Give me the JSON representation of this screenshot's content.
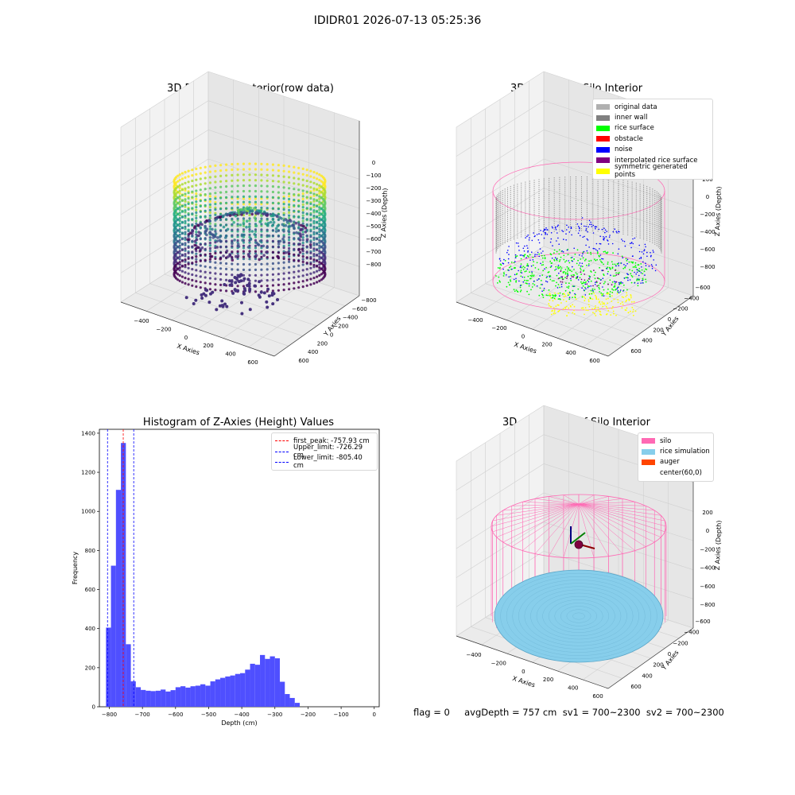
{
  "figure": {
    "suptitle": "IDIDR01 2026-07-13 05:25:36",
    "status_line": "flag = 0     avgDepth = 757 cm  sv1 = 700~2300  sv2 = 700~2300"
  },
  "colors": {
    "silo": "#ff69b4",
    "rice": "#87ceeb",
    "auger": "#ff4500",
    "inner_wall": "#808080",
    "rice_surface": "#00ff00",
    "obstacle": "#ff0000",
    "noise": "#0000ff",
    "interpolated": "#800080",
    "symmetric": "#ffff00",
    "original": "#b0b0b0",
    "hist_bar": "#4f4fff"
  },
  "chart_data": [
    {
      "type": "scatter3d",
      "title": "3D Plot of Silo Interior(row data)",
      "xlabel": "X Axies",
      "ylabel": "Y Axies",
      "zlabel": "Z Axies (Depth)",
      "xticks": [
        "−400",
        "−200",
        "0",
        "200",
        "400",
        "600"
      ],
      "yticks": [
        "−800",
        "−600",
        "−400",
        "−200",
        "0",
        "200",
        "400",
        "600"
      ],
      "zticks": [
        "0",
        "−100",
        "−200",
        "−300",
        "−400",
        "−500",
        "−600",
        "−700",
        "−800"
      ],
      "colormap": "viridis"
    },
    {
      "type": "scatter3d",
      "title": "3D classify of Silo Interior",
      "xlabel": "X Axies",
      "ylabel": "Y Axies",
      "zlabel": "Z Axies (Depth)",
      "xticks": [
        "−400",
        "−200",
        "0",
        "200",
        "400",
        "600"
      ],
      "yticks": [
        "−600",
        "−400",
        "−200",
        "0",
        "200",
        "400",
        "600"
      ],
      "zticks": [
        "200",
        "0",
        "−200",
        "−400",
        "−600",
        "−800"
      ],
      "legend": [
        {
          "label": "original data",
          "color": "#b0b0b0"
        },
        {
          "label": "inner wall",
          "color": "#808080"
        },
        {
          "label": "rice surface",
          "color": "#00ff00"
        },
        {
          "label": "obstacle",
          "color": "#ff0000"
        },
        {
          "label": "noise",
          "color": "#0000ff"
        },
        {
          "label": "interpolated rice surface",
          "color": "#800080"
        },
        {
          "label": "symmetric generated points",
          "color": "#ffff00"
        }
      ]
    },
    {
      "type": "bar",
      "title": "Histogram of Z-Axies (Height) Values",
      "xlabel": "Depth (cm)",
      "ylabel": "Frequency",
      "xlim": [
        -830,
        15
      ],
      "ylim": [
        0,
        1420
      ],
      "xticks": [
        -800,
        -700,
        -600,
        -500,
        -400,
        -300,
        -200,
        -100,
        0
      ],
      "xtick_labels": [
        "−800",
        "−700",
        "−600",
        "−500",
        "−400",
        "−300",
        "−200",
        "−100",
        "0"
      ],
      "yticks": [
        0,
        200,
        400,
        600,
        800,
        1000,
        1200,
        1400
      ],
      "yticks_labels": [
        "0",
        "200",
        "400",
        "600",
        "800",
        "1000",
        "1200",
        "1400"
      ],
      "bin_start": -810,
      "bin_width": 15,
      "values": [
        405,
        722,
        1110,
        1350,
        320,
        130,
        100,
        86,
        82,
        80,
        82,
        88,
        78,
        85,
        100,
        105,
        98,
        105,
        108,
        115,
        108,
        130,
        140,
        148,
        155,
        160,
        168,
        172,
        190,
        220,
        215,
        265,
        245,
        258,
        248,
        128,
        65,
        45,
        20
      ],
      "lines": [
        {
          "label": "first_peak: -757.93 cm",
          "x": -757.93,
          "color": "#ff0000"
        },
        {
          "label": "Upper_limit: -726.29 cm",
          "x": -726.29,
          "color": "#0000ff"
        },
        {
          "label": "Lower_limit: -805.40 cm",
          "x": -805.4,
          "color": "#0000ff"
        }
      ],
      "legend_position": "upper right"
    },
    {
      "type": "surface3d",
      "title": "3D simulation of Silo Interior",
      "xlabel": "X Axies",
      "ylabel": "Y Axies",
      "zlabel": "Z Axies (Depth)",
      "xticks": [
        "−400",
        "−200",
        "0",
        "200",
        "400",
        "600"
      ],
      "yticks": [
        "−600",
        "−400",
        "−200",
        "0",
        "200",
        "400",
        "600"
      ],
      "zticks": [
        "200",
        "0",
        "−200",
        "−400",
        "−600",
        "−800"
      ],
      "legend": [
        {
          "label": "silo",
          "color": "#ff69b4"
        },
        {
          "label": "rice simulation",
          "color": "#87ceeb"
        },
        {
          "label": "auger",
          "color": "#ff4500"
        },
        {
          "label": "center(60,0)",
          "color": ""
        }
      ]
    }
  ]
}
